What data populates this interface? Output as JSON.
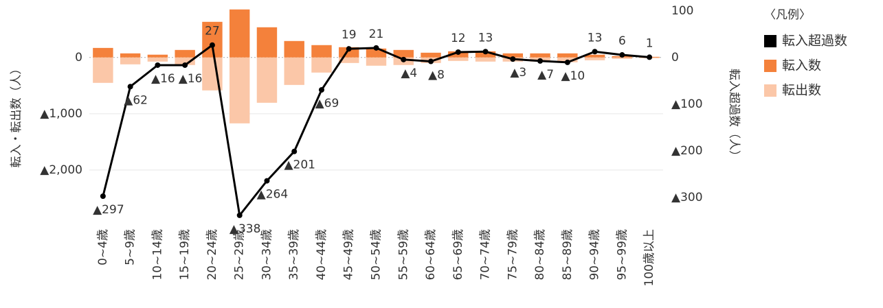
{
  "chart_data": {
    "type": "bar+line",
    "categories": [
      "0~4歳",
      "5~9歳",
      "10~14歳",
      "15~19歳",
      "20~24歳",
      "25~29歳",
      "30~34歳",
      "35~39歳",
      "40~44歳",
      "45~49歳",
      "50~54歳",
      "55~59歳",
      "60~64歳",
      "65~69歳",
      "70~74歳",
      "75~79歳",
      "80~84歳",
      "85~89歳",
      "90~94歳",
      "95~99歳",
      "100歳以上"
    ],
    "ylabel": "転入・転出数（人）",
    "y2label": "転入超過数（人）",
    "legend_title": "〈凡例〉",
    "legend": "right",
    "grid": true,
    "ylim": [
      -2880,
      900
    ],
    "yticks": [
      0,
      {
        "value": -1000,
        "label": "▲1,000"
      },
      {
        "value": -2000,
        "label": "▲2,000"
      }
    ],
    "y2lim": [
      -347,
      109
    ],
    "y2ticks": [
      100,
      0,
      {
        "value": -100,
        "label": "▲100"
      },
      {
        "value": -200,
        "label": "▲200"
      },
      {
        "value": -300,
        "label": "▲300"
      }
    ],
    "series": [
      {
        "name": "転入超過数",
        "type": "line",
        "axis": "y2",
        "color": "#000000",
        "values": [
          -297,
          -62,
          -16,
          -16,
          27,
          -338,
          -264,
          -201,
          -69,
          19,
          21,
          -4,
          -8,
          12,
          13,
          -3,
          -7,
          -10,
          13,
          6,
          1
        ],
        "value_labels": [
          "▲297",
          "▲62",
          "▲16",
          "▲16",
          "27",
          "▲338",
          "▲264",
          "▲201",
          "▲69",
          "19",
          "21",
          "▲4",
          "▲8",
          "12",
          "13",
          "▲3",
          "▲7",
          "▲10",
          "13",
          "6",
          "1"
        ]
      },
      {
        "name": "転入数",
        "type": "bar",
        "color": "#f4813b",
        "values": [
          170,
          73,
          50,
          134,
          634,
          854,
          537,
          293,
          220,
          183,
          159,
          134,
          85,
          110,
          110,
          73,
          73,
          73,
          50,
          24,
          12
        ]
      },
      {
        "name": "転出数",
        "type": "bar",
        "color": "#fbc7a8",
        "values": [
          -451,
          -122,
          -73,
          -134,
          -585,
          -1171,
          -805,
          -488,
          -268,
          -98,
          -146,
          -134,
          -98,
          -61,
          -73,
          -73,
          -73,
          -85,
          -49,
          -24,
          -12
        ]
      }
    ]
  }
}
